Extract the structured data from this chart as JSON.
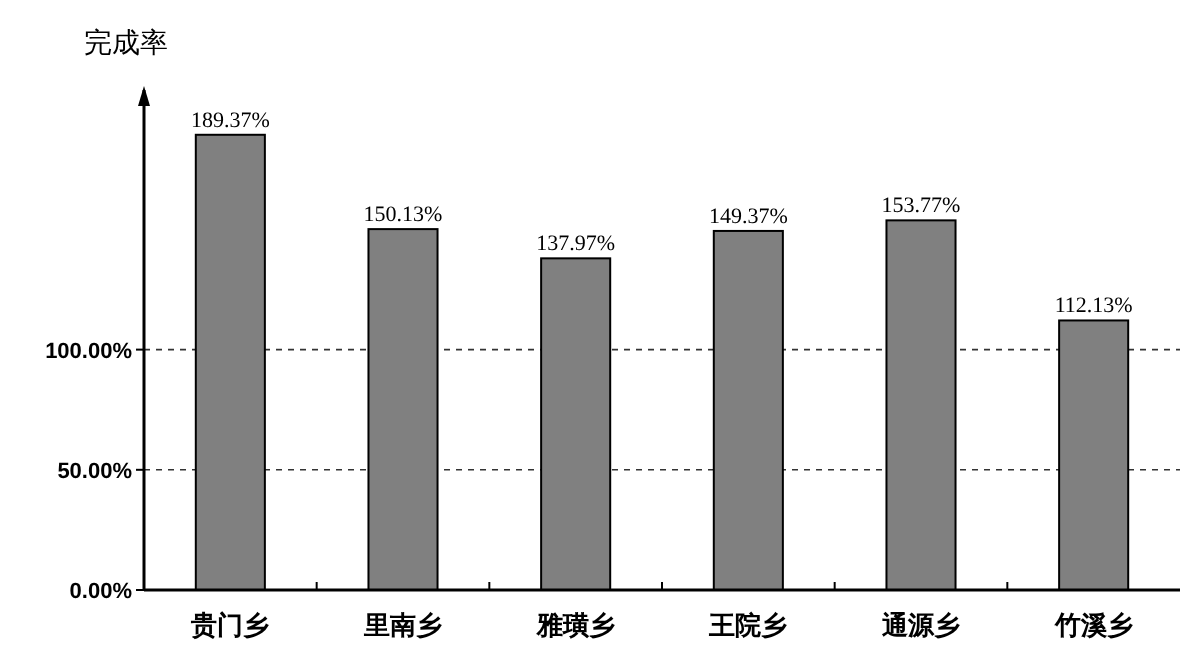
{
  "chart_data": {
    "type": "bar",
    "ylabel": "完成率",
    "categories": [
      "贵门乡",
      "里南乡",
      "雅璜乡",
      "王院乡",
      "通源乡",
      "竹溪乡"
    ],
    "values": [
      189.37,
      150.13,
      137.97,
      149.37,
      153.77,
      112.13
    ],
    "value_labels": [
      "189.37%",
      "150.13%",
      "137.97%",
      "149.37%",
      "153.77%",
      "112.13%"
    ],
    "color": "#808080",
    "ylim": [
      0,
      208
    ],
    "yticks": [
      {
        "value": 0,
        "label": "0.00%"
      },
      {
        "value": 50,
        "label": "50.00%"
      },
      {
        "value": 100,
        "label": "100.00%"
      }
    ],
    "grid": "y"
  }
}
